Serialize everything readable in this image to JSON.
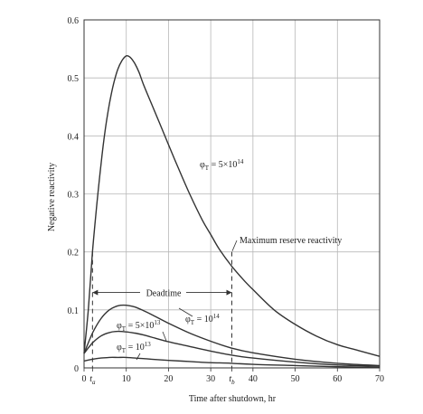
{
  "chart_data": {
    "type": "line",
    "xlabel": "Time after shutdown, hr",
    "ylabel": "Negative reactivity",
    "xlim": [
      0,
      70
    ],
    "ylim": [
      0,
      0.6
    ],
    "grid": true,
    "x_ticks": [
      {
        "value": 0,
        "label": "0"
      },
      {
        "value": 2,
        "label": "t_a"
      },
      {
        "value": 10,
        "label": "10"
      },
      {
        "value": 20,
        "label": "20"
      },
      {
        "value": 30,
        "label": "30"
      },
      {
        "value": 35,
        "label": "t_b"
      },
      {
        "value": 40,
        "label": "40"
      },
      {
        "value": 50,
        "label": "50"
      },
      {
        "value": 60,
        "label": "60"
      },
      {
        "value": 70,
        "label": "70"
      }
    ],
    "y_ticks": [
      {
        "value": 0,
        "label": "0"
      },
      {
        "value": 0.1,
        "label": "0.1"
      },
      {
        "value": 0.2,
        "label": "0.2"
      },
      {
        "value": 0.3,
        "label": "0.3"
      },
      {
        "value": 0.4,
        "label": "0.4"
      },
      {
        "value": 0.5,
        "label": "0.5"
      },
      {
        "value": 0.6,
        "label": "0.6"
      }
    ],
    "series": [
      {
        "name": "φ_T = 5×10^14",
        "x": [
          0,
          1,
          2,
          3,
          4,
          5,
          6,
          7,
          8,
          9,
          10,
          11,
          12,
          13,
          14,
          16,
          18,
          20,
          22,
          25,
          28,
          30,
          32,
          35,
          38,
          40,
          45,
          50,
          55,
          60,
          65,
          70
        ],
        "y": [
          0.025,
          0.1,
          0.2,
          0.28,
          0.35,
          0.41,
          0.455,
          0.49,
          0.515,
          0.53,
          0.538,
          0.535,
          0.525,
          0.51,
          0.49,
          0.455,
          0.42,
          0.385,
          0.35,
          0.3,
          0.255,
          0.23,
          0.205,
          0.175,
          0.15,
          0.135,
          0.1,
          0.075,
          0.055,
          0.04,
          0.03,
          0.02
        ]
      },
      {
        "name": "φ_T = 10^14",
        "x": [
          0,
          2,
          4,
          6,
          8,
          10,
          12,
          14,
          16,
          20,
          25,
          30,
          35,
          40,
          50,
          60,
          70
        ],
        "y": [
          0.025,
          0.06,
          0.085,
          0.1,
          0.107,
          0.108,
          0.105,
          0.099,
          0.092,
          0.077,
          0.06,
          0.046,
          0.034,
          0.026,
          0.015,
          0.008,
          0.004
        ]
      },
      {
        "name": "φ_T = 5×10^13",
        "x": [
          0,
          2,
          4,
          6,
          8,
          10,
          12,
          14,
          16,
          20,
          25,
          30,
          35,
          40,
          50,
          60,
          70
        ],
        "y": [
          0.025,
          0.043,
          0.055,
          0.061,
          0.063,
          0.062,
          0.06,
          0.057,
          0.053,
          0.045,
          0.037,
          0.029,
          0.022,
          0.017,
          0.01,
          0.005,
          0.003
        ]
      },
      {
        "name": "φ_T = 10^13",
        "x": [
          0,
          2,
          4,
          6,
          8,
          10,
          12,
          14,
          16,
          20,
          25,
          30,
          35,
          40,
          50,
          60,
          70
        ],
        "y": [
          0.012,
          0.015,
          0.017,
          0.018,
          0.018,
          0.018,
          0.017,
          0.016,
          0.015,
          0.013,
          0.011,
          0.009,
          0.008,
          0.006,
          0.004,
          0.002,
          0.001
        ]
      }
    ],
    "reference_line": {
      "label": "Maximum reserve reactivity",
      "y": 0.2
    },
    "deadtime": {
      "label": "Deadtime",
      "x_start": 2,
      "x_end": 35,
      "y": 0.13
    }
  }
}
